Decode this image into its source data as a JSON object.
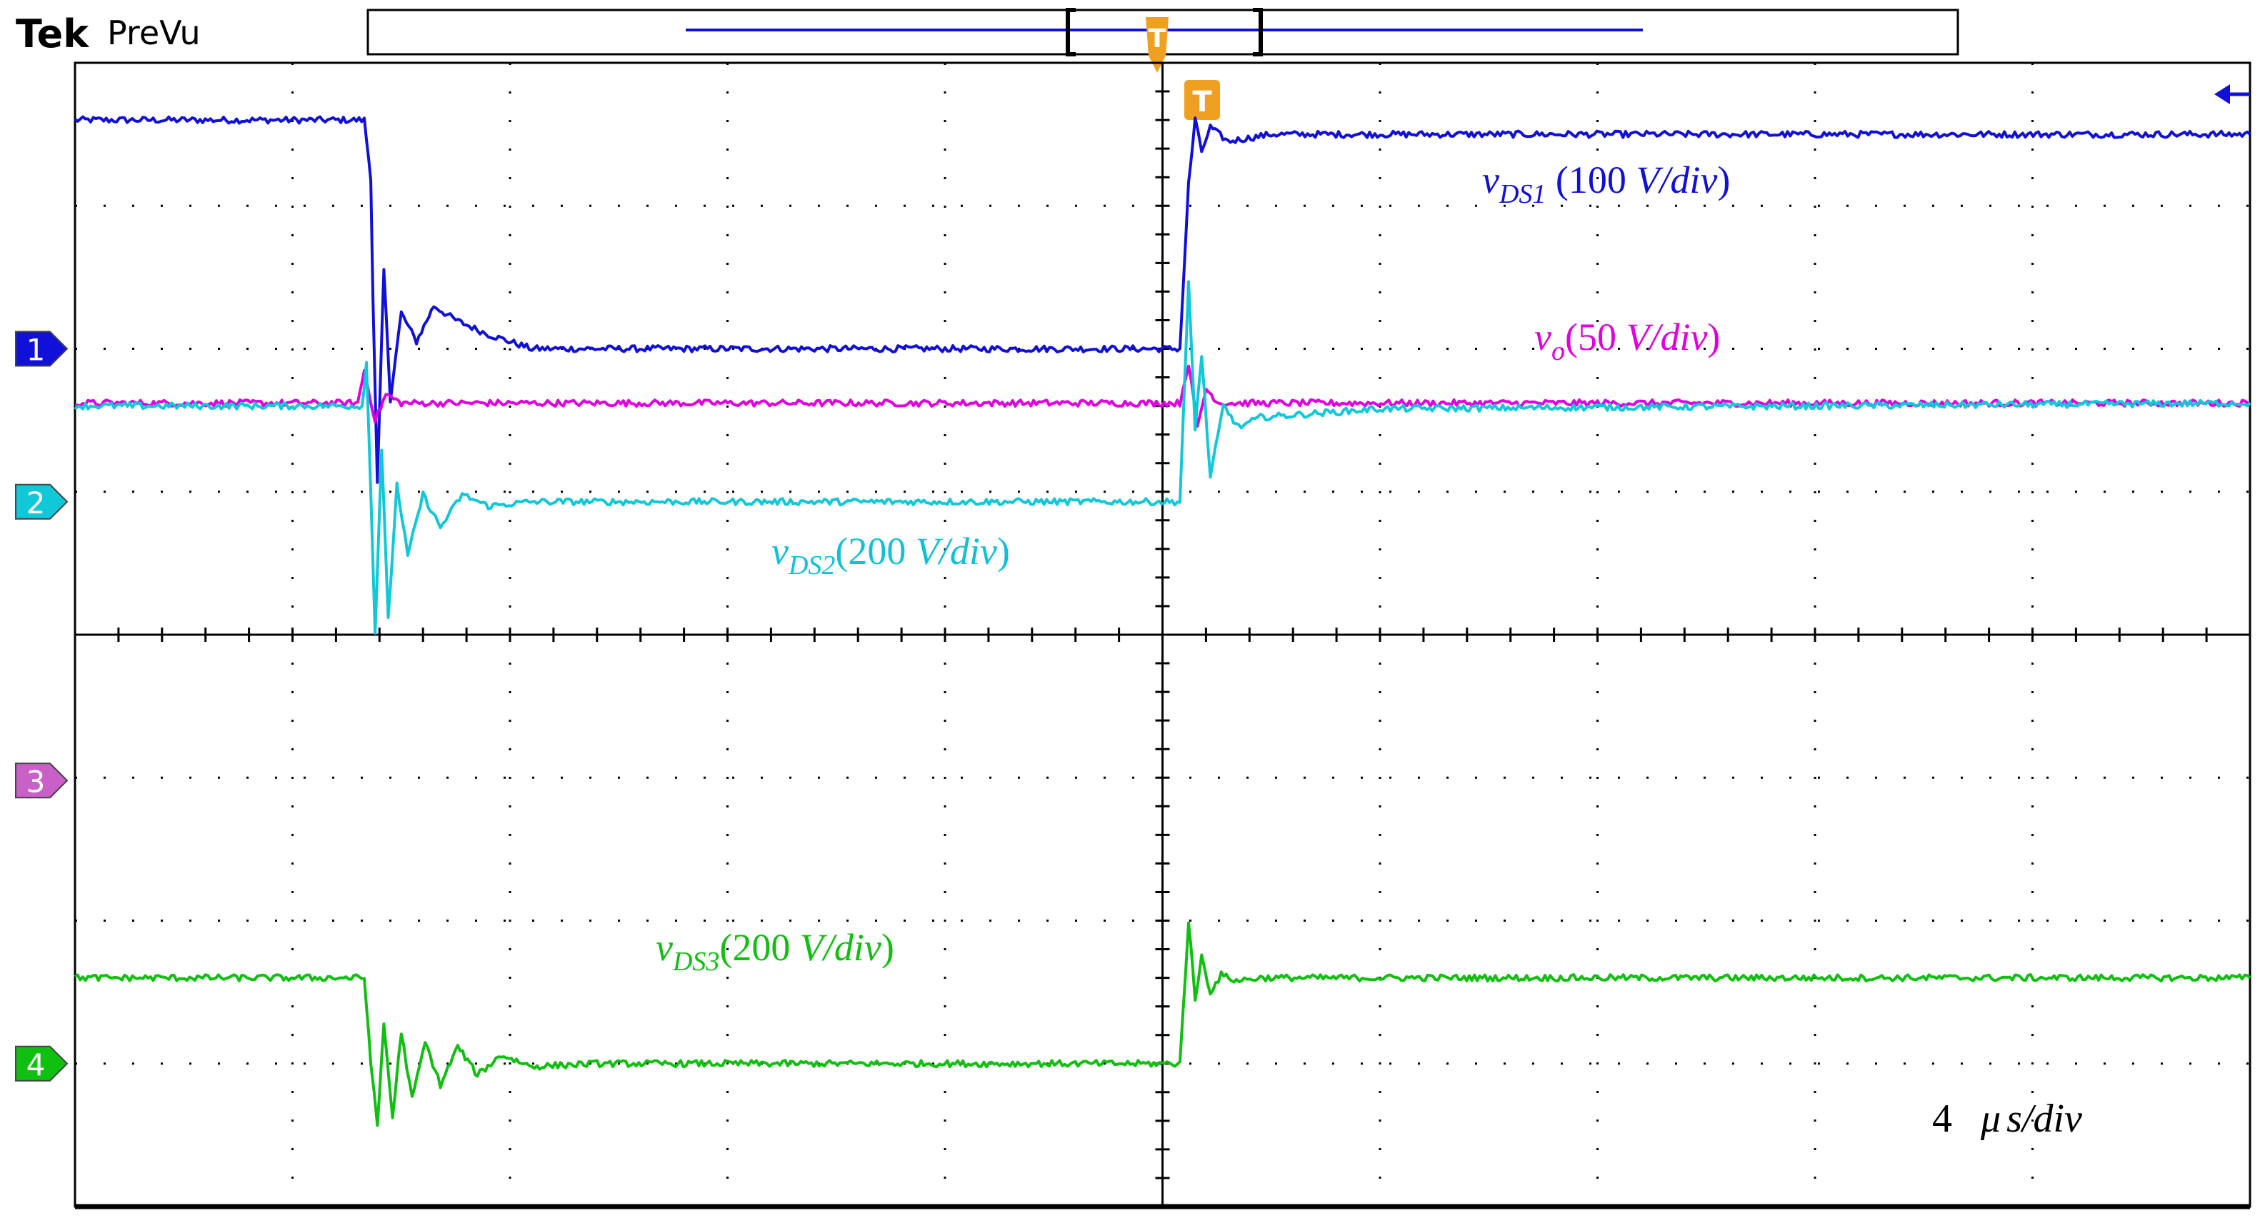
{
  "header": {
    "brand": "Tek",
    "status": "PreVu"
  },
  "trigger": {
    "marker": "T"
  },
  "channels": [
    {
      "id": "1",
      "color": "#1010d8"
    },
    {
      "id": "2",
      "color": "#10c8d8"
    },
    {
      "id": "3",
      "color": "#c860c8"
    },
    {
      "id": "4",
      "color": "#10c010"
    }
  ],
  "labels": {
    "vds1": {
      "var": "v",
      "sub": "DS1",
      "open": " (100 ",
      "unit": "V/div",
      "close": ")",
      "color": "#1010d8"
    },
    "vo": {
      "var": "v",
      "sub": "o",
      "open": "(50 ",
      "unit": "V/div",
      "close": ")",
      "color": "#e000e0"
    },
    "vds2": {
      "var": "v",
      "sub": "DS2",
      "open": "(200 ",
      "unit": "V/div",
      "close": ")",
      "color": "#10c0d8"
    },
    "vds3": {
      "var": "v",
      "sub": "DS3",
      "open": "(200 ",
      "unit": "V/div",
      "close": ")",
      "color": "#10c010"
    },
    "timebase": {
      "num": "4",
      "mu": "μ",
      "unit": "s/div"
    }
  },
  "chart_data": {
    "type": "line",
    "x_unit": "div",
    "y_unit": "div",
    "xlim": [
      0,
      10
    ],
    "ylim": [
      0,
      8
    ],
    "grid": true,
    "series": [
      {
        "name": "vDS1 (100 V/div)",
        "color": "#1010d8",
        "x": [
          0,
          1.33,
          1.36,
          1.37,
          1.39,
          1.42,
          1.45,
          1.5,
          1.57,
          1.65,
          1.75,
          1.9,
          2.1,
          2.5,
          5.08,
          5.12,
          5.15,
          5.18,
          5.22,
          5.3,
          5.5,
          6.0,
          10
        ],
        "y": [
          7.6,
          7.6,
          7.2,
          6.35,
          5.05,
          6.55,
          5.65,
          6.25,
          6.05,
          6.3,
          6.2,
          6.1,
          6.0,
          6.0,
          6.0,
          7.15,
          7.6,
          7.38,
          7.55,
          7.45,
          7.5,
          7.5,
          7.5
        ]
      },
      {
        "name": "vo (50 V/div)",
        "color": "#e000e0",
        "x": [
          0,
          1.3,
          1.33,
          1.38,
          1.43,
          1.5,
          5.08,
          5.12,
          5.16,
          5.2,
          5.26,
          10
        ],
        "y": [
          5.62,
          5.62,
          5.85,
          5.5,
          5.68,
          5.62,
          5.62,
          5.9,
          5.45,
          5.72,
          5.62,
          5.62
        ]
      },
      {
        "name": "vDS2 (200 V/div)",
        "color": "#10c8d8",
        "x": [
          0,
          1.32,
          1.34,
          1.36,
          1.38,
          1.41,
          1.44,
          1.48,
          1.53,
          1.6,
          1.68,
          1.78,
          1.9,
          2.1,
          5.08,
          5.12,
          5.15,
          5.18,
          5.22,
          5.28,
          5.35,
          5.45,
          6.0,
          10
        ],
        "y": [
          5.6,
          5.6,
          5.9,
          5.0,
          4.02,
          5.3,
          4.1,
          5.05,
          4.55,
          4.98,
          4.75,
          4.98,
          4.9,
          4.93,
          4.93,
          6.45,
          5.45,
          5.95,
          5.1,
          5.6,
          5.45,
          5.52,
          5.58,
          5.62
        ]
      },
      {
        "name": "vDS3 (200 V/div)",
        "color": "#10c010",
        "x": [
          0,
          1.33,
          1.36,
          1.39,
          1.42,
          1.46,
          1.5,
          1.55,
          1.61,
          1.68,
          1.76,
          1.85,
          1.96,
          2.1,
          2.4,
          5.08,
          5.12,
          5.15,
          5.18,
          5.22,
          5.27,
          5.34,
          5.45,
          10
        ],
        "y": [
          1.6,
          1.6,
          1.02,
          0.55,
          1.28,
          0.62,
          1.22,
          0.75,
          1.15,
          0.85,
          1.12,
          0.92,
          1.06,
          0.98,
          1.0,
          1.0,
          2.0,
          1.45,
          1.75,
          1.5,
          1.62,
          1.58,
          1.6,
          1.6
        ]
      }
    ]
  }
}
